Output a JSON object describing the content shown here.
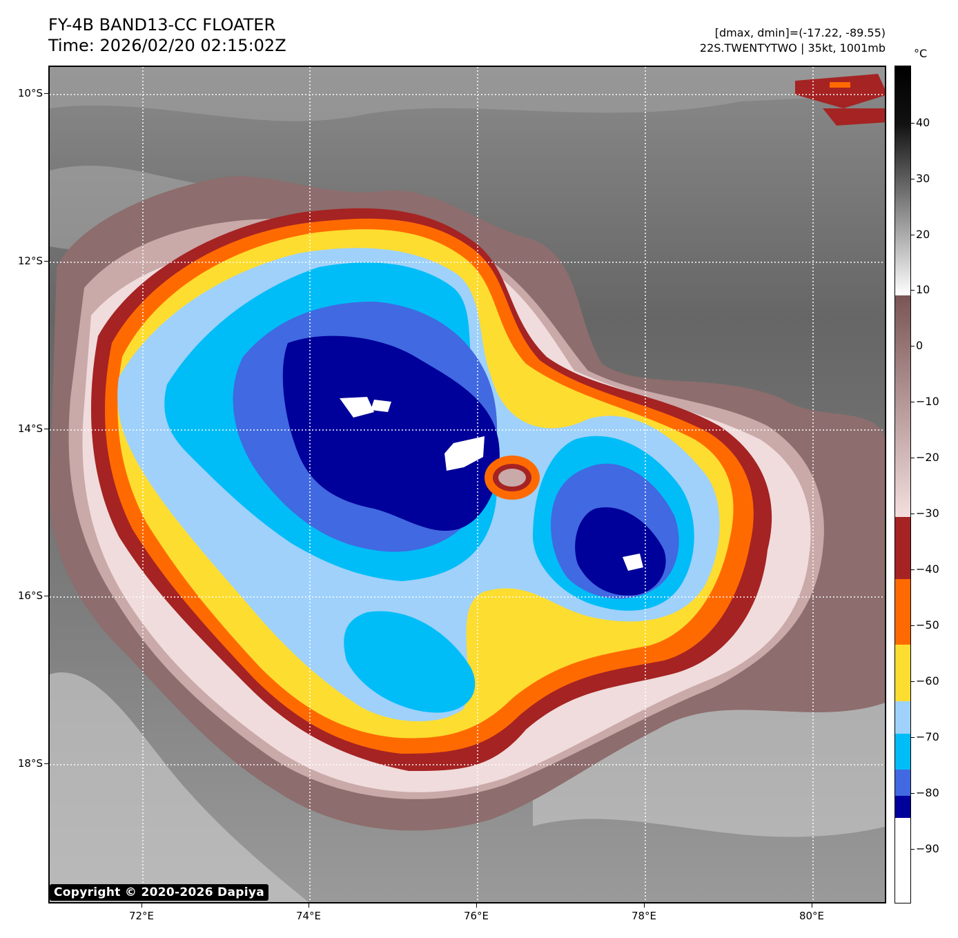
{
  "header": {
    "title_line1": "FY-4B BAND13-CC FLOATER",
    "title_line2": "Time: 2026/02/20 02:15:02Z",
    "meta_line1": "[dmax, dmin]=(-17.22, -89.55)",
    "meta_line2": "22S.TWENTYTWO | 35kt, 1001mb"
  },
  "map": {
    "copyright": "Copyright © 2020-2026 Dapiya",
    "lat_labels": [
      "10°S",
      "12°S",
      "14°S",
      "16°S",
      "18°S"
    ],
    "lon_labels": [
      "72°E",
      "74°E",
      "76°E",
      "78°E",
      "80°E"
    ],
    "storm_id": "22S.TWENTYTWO",
    "intensity_kt": 35,
    "pressure_mb": 1001
  },
  "colorbar": {
    "unit": "°C",
    "tick_labels": [
      "40",
      "30",
      "20",
      "10",
      "0",
      "−10",
      "−20",
      "−30",
      "−40",
      "−50",
      "−60",
      "−70",
      "−80",
      "−90"
    ],
    "colors": {
      "warm_dark": "#000000",
      "warm_light": "#ffffff",
      "mauve": "#7a5555",
      "pink": "#f3dede",
      "darkred": "#a52323",
      "orange": "#ff6a00",
      "yellow": "#fddd30",
      "lightblue": "#9fd1fb",
      "cyan": "#00bdf7",
      "royal": "#4169e1",
      "navy": "#00009a",
      "white": "#ffffff"
    }
  }
}
